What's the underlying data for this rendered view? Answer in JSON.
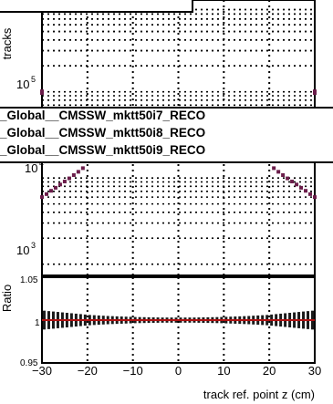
{
  "chart_data": [
    {
      "type": "scatter",
      "ylabel": "tracks",
      "y_scale": "log",
      "y_tick_labels": [
        "10",
        "10",
        "10"
      ],
      "y_tick_exponents": [
        "5",
        "4",
        "3"
      ],
      "xlim": [
        -30,
        30
      ],
      "grid": true,
      "legend_position": "top",
      "series": [
        {
          "name": "_Global__CMSSW_mktt50i7_RECO",
          "color": "#1a1a1a"
        },
        {
          "name": "_Global__CMSSW_mktt50i8_RECO",
          "color": "#b01010"
        },
        {
          "name": "_Global__CMSSW_mktt50i9_RECO",
          "color": "#3b1d5e"
        }
      ],
      "x": [
        -30,
        -29,
        -28,
        -27,
        -26,
        -25,
        -24,
        -23,
        -22,
        -21,
        21,
        22,
        23,
        24,
        25,
        26,
        27,
        28,
        29,
        30
      ],
      "values": [
        6000,
        6500,
        7100,
        7700,
        8400,
        9100,
        9900,
        10800,
        11800,
        13000,
        13000,
        11800,
        10800,
        9900,
        9100,
        8400,
        7700,
        7100,
        6500,
        6000
      ]
    },
    {
      "type": "line",
      "ylabel": "Ratio",
      "xlabel": "track ref. point z (cm)",
      "xlim": [
        -30,
        30
      ],
      "ylim": [
        0.95,
        1.05
      ],
      "x_tick_labels": [
        "−30",
        "−20",
        "−10",
        "0",
        "10",
        "20",
        "30"
      ],
      "y_tick_labels": [
        "1.05",
        "1",
        "0.95"
      ],
      "grid": true,
      "ratio_line": {
        "color": "#b01010",
        "value": 1.0
      },
      "x": [
        -29.5,
        -28.5,
        -27.5,
        -26.5,
        -25.5,
        -24.5,
        -23.5,
        -22.5,
        -21.5,
        -20.5,
        -19.5,
        -18.5,
        -17.5,
        -16.5,
        -15.5,
        -14.5,
        -13.5,
        -12.5,
        -11.5,
        -10.5,
        -9.5,
        -8.5,
        -7.5,
        -6.5,
        -5.5,
        -4.5,
        -3.5,
        -2.5,
        -1.5,
        -0.5,
        0.5,
        1.5,
        2.5,
        3.5,
        4.5,
        5.5,
        6.5,
        7.5,
        8.5,
        9.5,
        10.5,
        11.5,
        12.5,
        13.5,
        14.5,
        15.5,
        16.5,
        17.5,
        18.5,
        19.5,
        20.5,
        21.5,
        22.5,
        23.5,
        24.5,
        25.5,
        26.5,
        27.5,
        28.5,
        29.5
      ],
      "values": [
        1.0,
        1.0,
        1.0,
        1.0,
        1.0,
        1.0,
        1.0,
        1.0,
        1.0,
        1.0,
        1.0,
        1.0,
        1.0,
        1.0,
        1.0,
        1.0,
        1.0,
        1.0,
        1.0,
        1.0,
        1.0,
        1.0,
        1.0,
        1.0,
        1.0,
        1.0,
        1.0,
        1.0,
        1.0,
        1.0,
        1.0,
        1.0,
        1.0,
        1.0,
        1.0,
        1.0,
        1.0,
        1.0,
        1.0,
        1.0,
        1.0,
        1.0,
        1.0,
        1.0,
        1.0,
        1.0,
        1.0,
        1.0,
        1.0,
        1.0,
        1.0,
        1.0,
        1.0,
        1.0,
        1.0,
        1.0,
        1.0,
        1.0,
        1.0,
        1.0
      ],
      "errors": [
        0.011,
        0.0105,
        0.01,
        0.0095,
        0.009,
        0.0085,
        0.008,
        0.0075,
        0.007,
        0.0065,
        0.006,
        0.0057,
        0.0054,
        0.0051,
        0.0048,
        0.0046,
        0.0044,
        0.0042,
        0.004,
        0.0038,
        0.0036,
        0.0035,
        0.0034,
        0.0033,
        0.0032,
        0.0031,
        0.003,
        0.003,
        0.003,
        0.003,
        0.003,
        0.003,
        0.003,
        0.003,
        0.0031,
        0.0032,
        0.0033,
        0.0034,
        0.0035,
        0.0036,
        0.0038,
        0.004,
        0.0042,
        0.0044,
        0.0046,
        0.0048,
        0.0051,
        0.0054,
        0.0057,
        0.006,
        0.0065,
        0.007,
        0.0075,
        0.008,
        0.0085,
        0.009,
        0.0095,
        0.01,
        0.0105,
        0.011
      ]
    }
  ]
}
